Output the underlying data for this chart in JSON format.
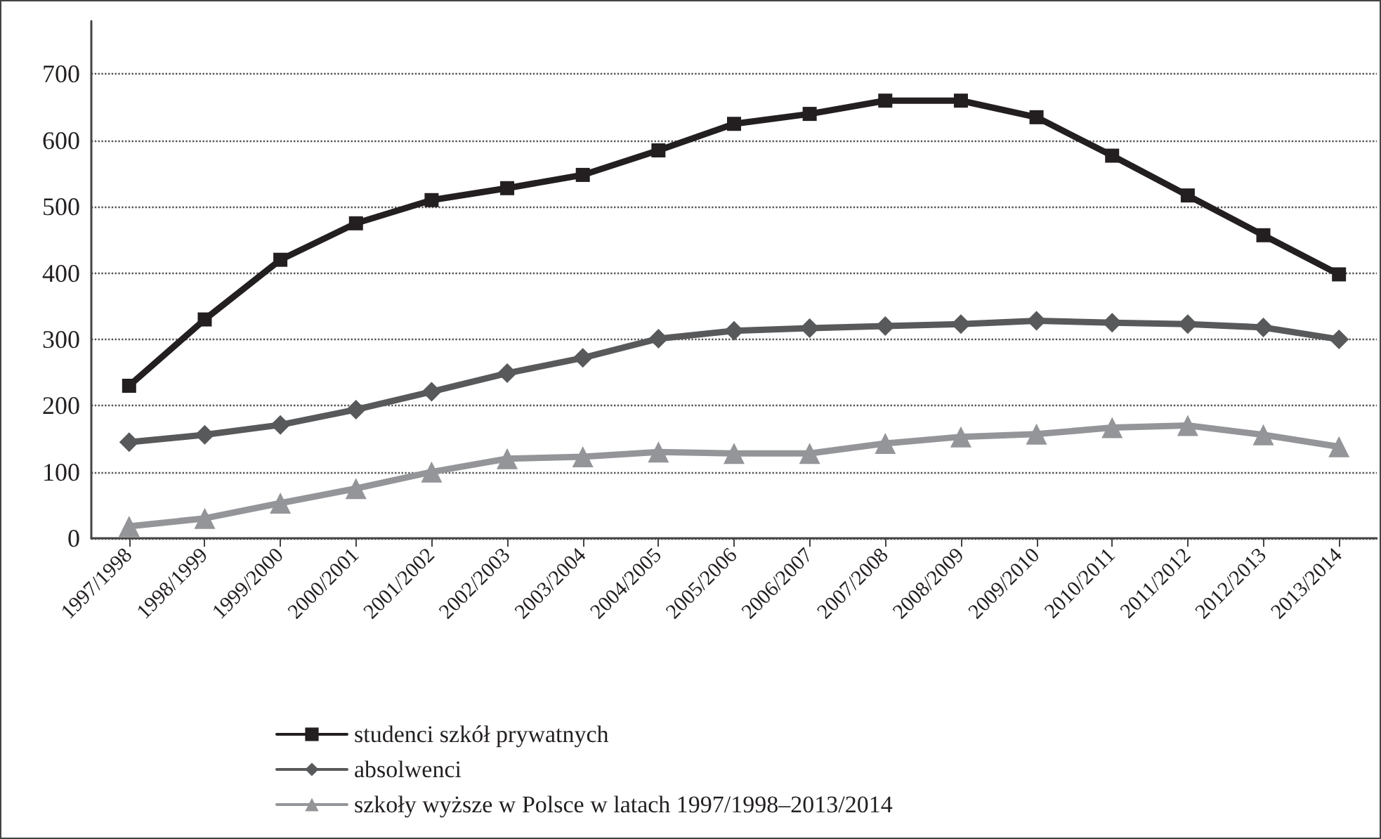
{
  "chart_data": {
    "type": "line",
    "categories": [
      "1997/1998",
      "1998/1999",
      "1999/2000",
      "2000/2001",
      "2001/2002",
      "2002/2003",
      "2003/2004",
      "2004/2005",
      "2005/2006",
      "2006/2007",
      "2007/2008",
      "2008/2009",
      "2009/2010",
      "2010/2011",
      "2011/2012",
      "2012/2013",
      "2013/2014"
    ],
    "series": [
      {
        "name": "studenci szkół prywatnych",
        "color": "#231f20",
        "marker": "square",
        "values": [
          230,
          330,
          420,
          475,
          510,
          528,
          548,
          585,
          625,
          640,
          660,
          660,
          635,
          577,
          517,
          457,
          398
        ]
      },
      {
        "name": "absolwenci",
        "color": "#58595b",
        "marker": "diamond",
        "values": [
          145,
          156,
          171,
          194,
          221,
          249,
          272,
          301,
          313,
          317,
          320,
          323,
          328,
          325,
          323,
          318,
          300
        ]
      },
      {
        "name": "szkoły wyższe w Polsce w latach 1997/1998–2013/2014",
        "color": "#939598",
        "marker": "triangle",
        "values": [
          18,
          30,
          53,
          75,
          100,
          120,
          123,
          130,
          128,
          128,
          143,
          153,
          157,
          167,
          170,
          156,
          138
        ]
      }
    ],
    "ylim": [
      0,
      780
    ],
    "yticks": [
      0,
      100,
      200,
      300,
      400,
      500,
      600,
      700
    ],
    "grid": "y",
    "legend": "bottom left",
    "line_style": "solid"
  }
}
